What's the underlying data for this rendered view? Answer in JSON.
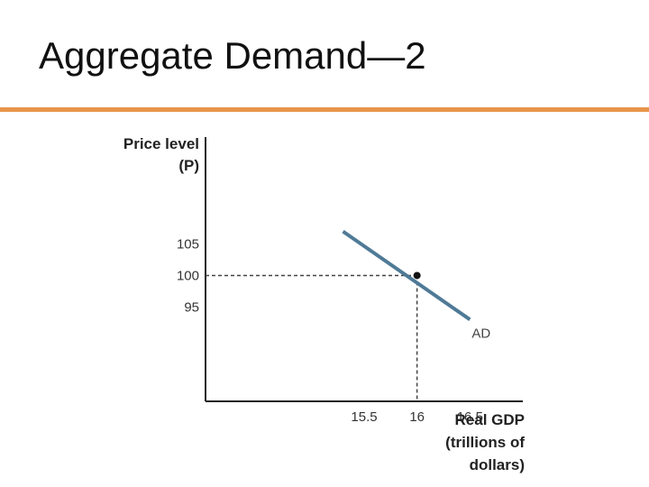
{
  "slide": {
    "title": "Aggregate Demand—2",
    "accent_color": "#E8954A"
  },
  "chart_data": {
    "type": "line",
    "ylabel_lines": [
      "Price level",
      "(P)"
    ],
    "xlabel_lines": [
      "Real GDP",
      "(trillions of",
      "dollars)"
    ],
    "x_ticks": [
      15.5,
      16,
      16.5
    ],
    "y_ticks": [
      95,
      100,
      105
    ],
    "xlim": [
      14.0,
      17.0
    ],
    "ylim": [
      80,
      122
    ],
    "series": [
      {
        "name": "AD",
        "color": "#4F7A96",
        "x": [
          15.3,
          16.5
        ],
        "y": [
          107.0,
          93.0
        ]
      }
    ],
    "highlight_point": {
      "x": 16,
      "y": 100
    },
    "grid": false
  }
}
